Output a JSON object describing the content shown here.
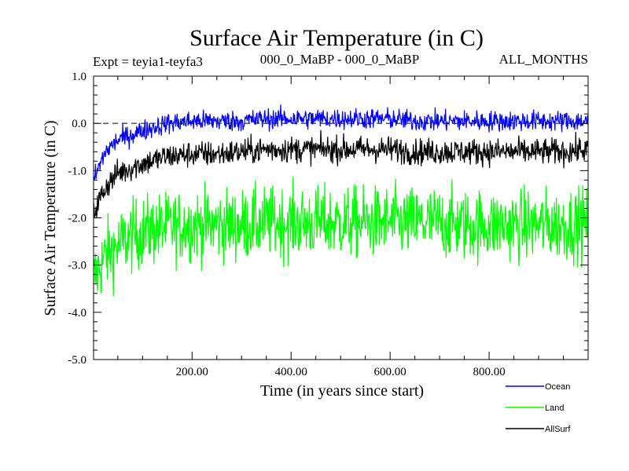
{
  "chart_data": {
    "type": "line",
    "title": "Surface Air Temperature (in C)",
    "subtitle_left": "Expt = teyia1-teyfa3",
    "subtitle_center": "000_0_MaBP - 000_0_MaBP",
    "subtitle_right": "ALL_MONTHS",
    "xlabel": "Time (in years since start)",
    "ylabel": "Surface Air Temperature (in C)",
    "xlim": [
      1,
      1000
    ],
    "ylim": [
      -5.0,
      1.0
    ],
    "x_ticks": [
      200,
      400,
      600,
      800
    ],
    "x_tick_labels": [
      "200.00",
      "400.00",
      "600.00",
      "800.00"
    ],
    "y_ticks": [
      1.0,
      0.0,
      -1.0,
      -2.0,
      -3.0,
      -4.0,
      -5.0
    ],
    "y_tick_labels": [
      "1.0",
      "0.0",
      "-1.0",
      "-2.0",
      "-3.0",
      "-4.0",
      "-5.0"
    ],
    "zero_reference_line": 0.0,
    "legend_position": "below-right",
    "series": [
      {
        "name": "Ocean",
        "color": "#0000ff",
        "x": [
          1,
          25,
          50,
          75,
          100,
          150,
          200,
          250,
          300,
          350,
          400,
          450,
          500,
          550,
          600,
          650,
          700,
          750,
          800,
          850,
          900,
          950,
          1000
        ],
        "values": [
          -1.2,
          -0.6,
          -0.35,
          -0.25,
          -0.15,
          0.0,
          0.05,
          0.05,
          0.05,
          0.1,
          0.1,
          0.1,
          0.1,
          0.1,
          0.1,
          0.05,
          0.05,
          0.05,
          0.05,
          0.05,
          0.05,
          0.05,
          0.05
        ],
        "noise_amplitude": 0.22
      },
      {
        "name": "Land",
        "color": "#00ff00",
        "x": [
          1,
          25,
          50,
          75,
          100,
          150,
          200,
          250,
          300,
          350,
          400,
          450,
          500,
          550,
          600,
          650,
          700,
          750,
          800,
          850,
          900,
          950,
          1000
        ],
        "values": [
          -3.3,
          -2.8,
          -2.6,
          -2.4,
          -2.3,
          -2.2,
          -2.15,
          -2.15,
          -2.15,
          -2.1,
          -2.1,
          -2.1,
          -2.1,
          -2.1,
          -2.1,
          -2.1,
          -2.1,
          -2.15,
          -2.15,
          -2.15,
          -2.15,
          -2.15,
          -2.1
        ],
        "noise_amplitude": 0.75
      },
      {
        "name": "AllSurf",
        "color": "#000000",
        "x": [
          1,
          25,
          50,
          75,
          100,
          150,
          200,
          250,
          300,
          350,
          400,
          450,
          500,
          550,
          600,
          650,
          700,
          750,
          800,
          850,
          900,
          950,
          1000
        ],
        "values": [
          -1.9,
          -1.35,
          -1.05,
          -0.95,
          -0.85,
          -0.7,
          -0.65,
          -0.65,
          -0.6,
          -0.55,
          -0.55,
          -0.55,
          -0.55,
          -0.55,
          -0.55,
          -0.6,
          -0.6,
          -0.6,
          -0.6,
          -0.6,
          -0.6,
          -0.6,
          -0.55
        ],
        "noise_amplitude": 0.28
      }
    ]
  }
}
